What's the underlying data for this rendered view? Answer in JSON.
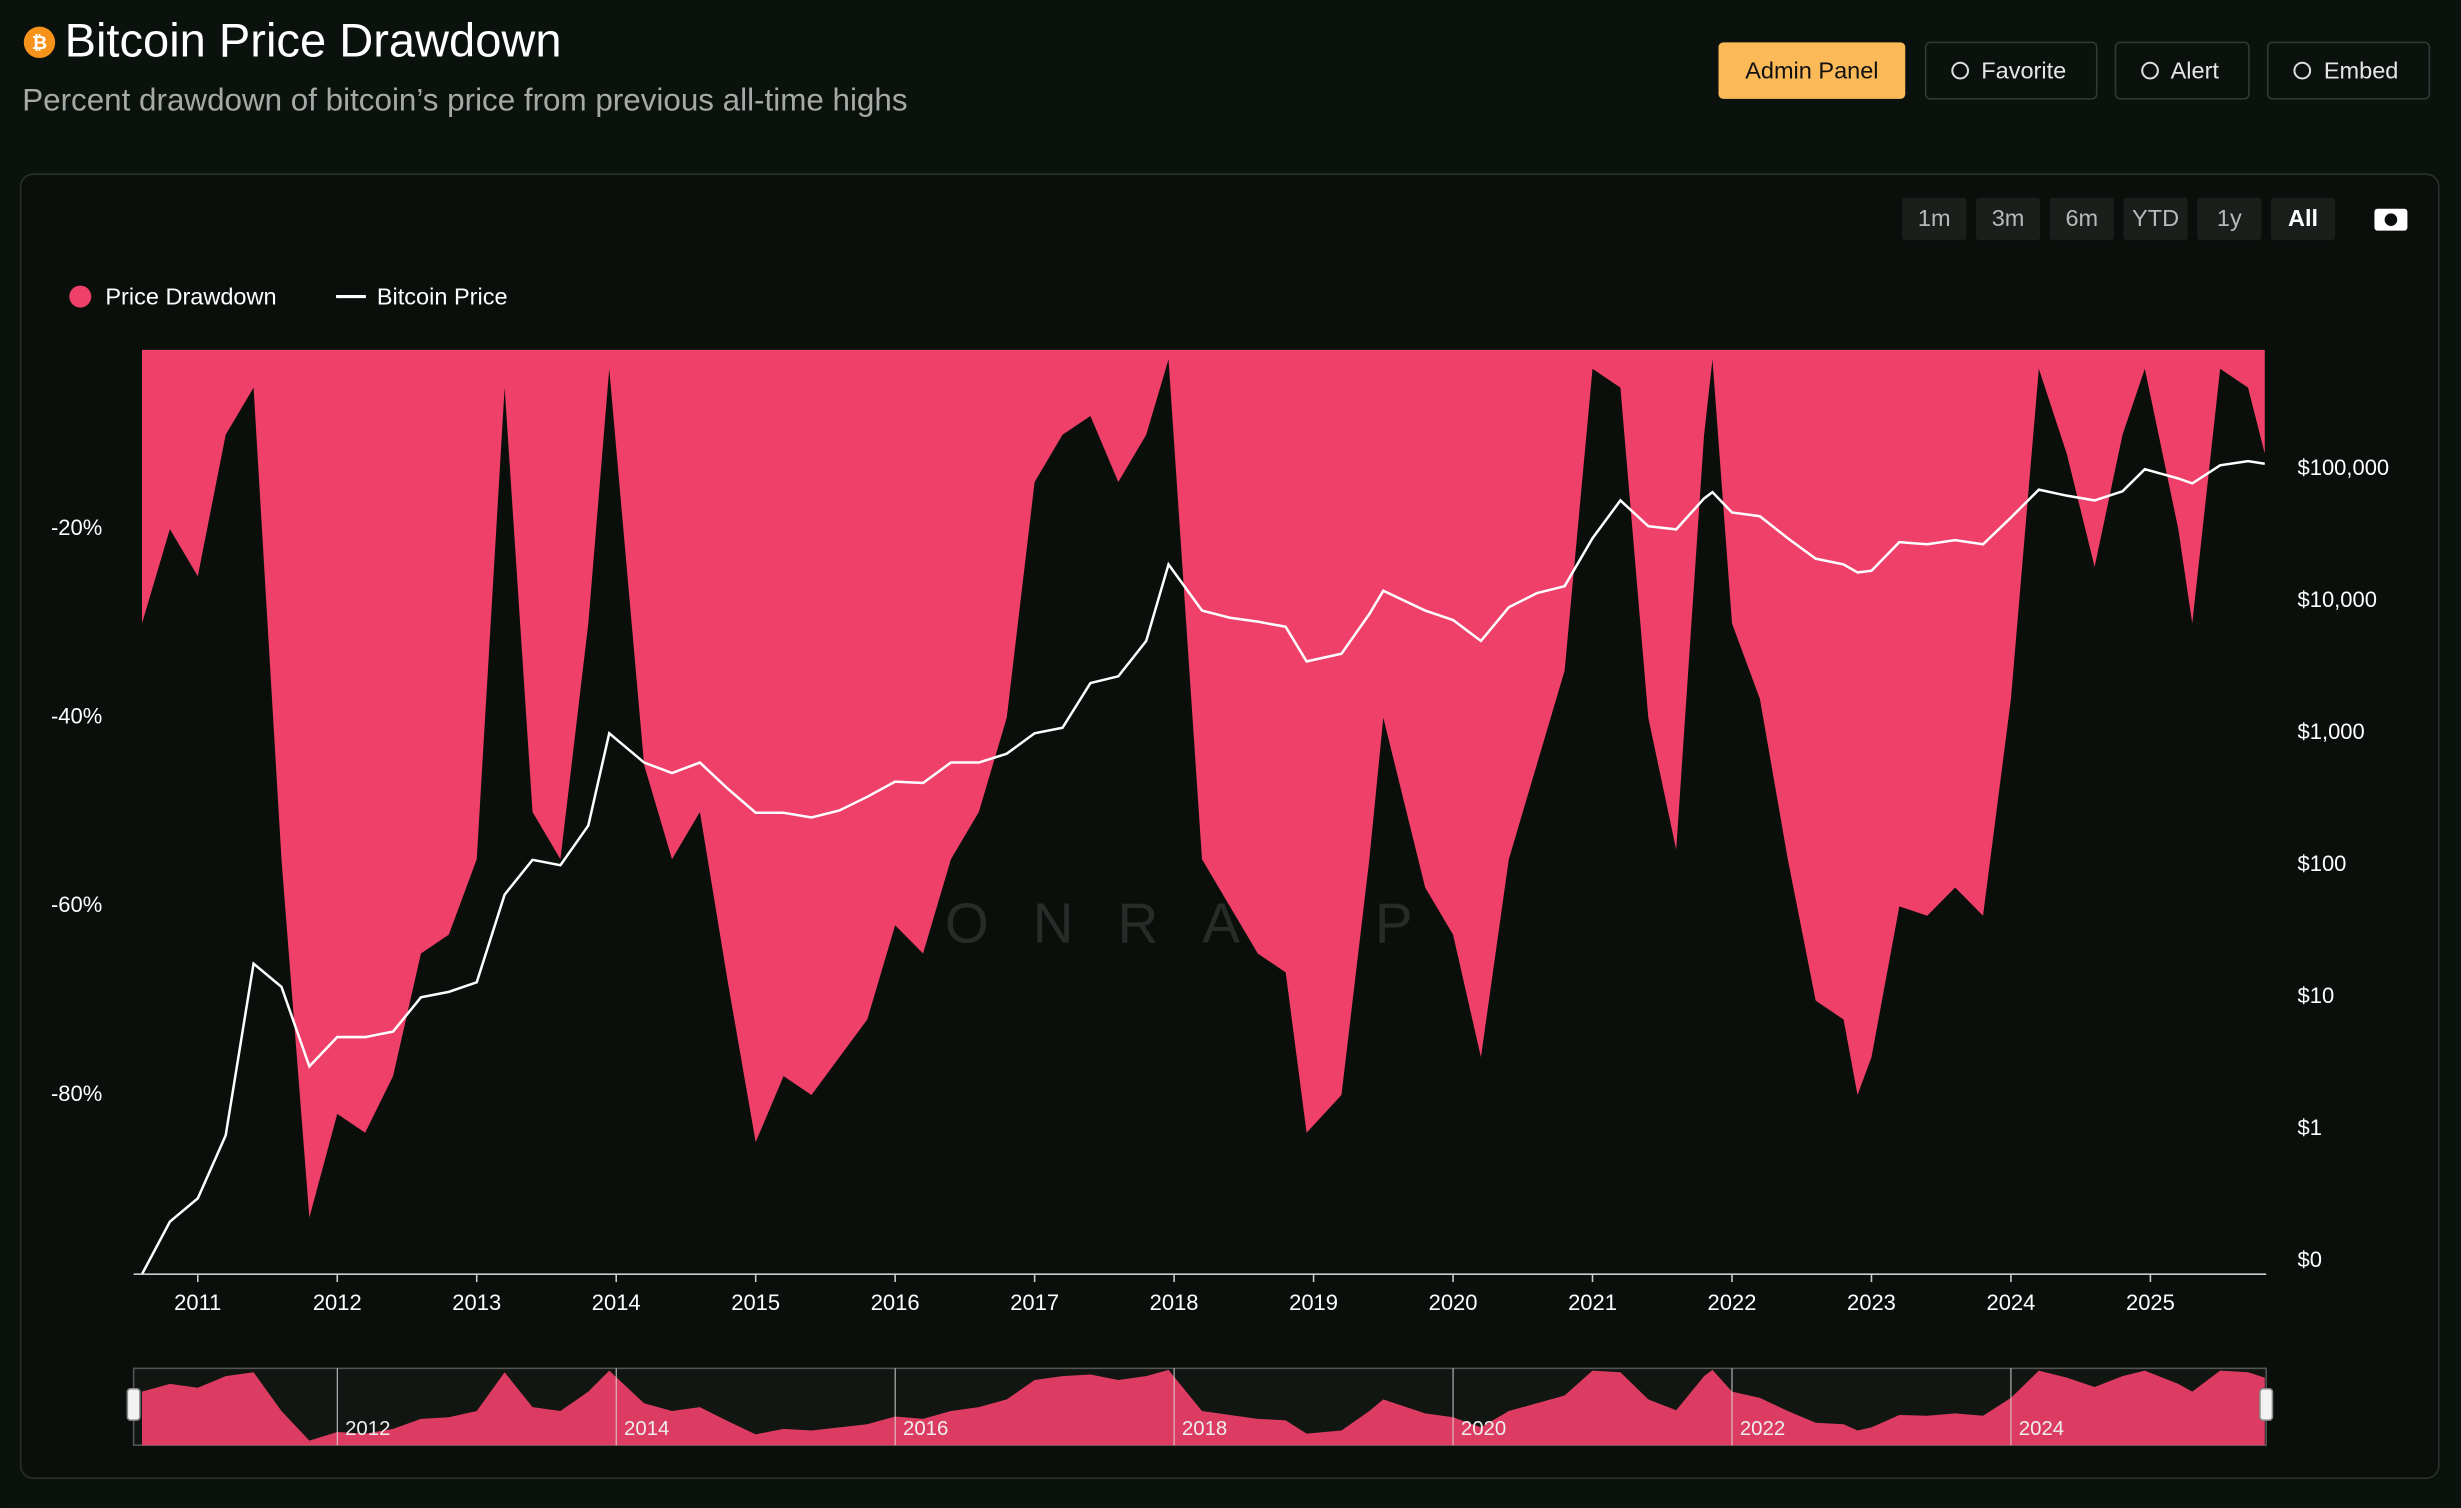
{
  "header": {
    "title": "Bitcoin Price Drawdown",
    "subtitle": "Percent drawdown of bitcoin’s price from previous all-time highs",
    "buttons": [
      "Admin Panel",
      "Favorite",
      "Alert",
      "Embed"
    ]
  },
  "range_buttons": [
    "1m",
    "3m",
    "6m",
    "YTD",
    "1y",
    "All"
  ],
  "watermark": "ONRAMP",
  "chart_data": {
    "type": "area-line",
    "x": [
      2010.6,
      2010.8,
      2011.0,
      2011.2,
      2011.4,
      2011.6,
      2011.8,
      2012.0,
      2012.2,
      2012.4,
      2012.6,
      2012.8,
      2013.0,
      2013.2,
      2013.4,
      2013.6,
      2013.8,
      2013.95,
      2014.2,
      2014.4,
      2014.6,
      2014.8,
      2015.0,
      2015.2,
      2015.4,
      2015.6,
      2015.8,
      2016.0,
      2016.2,
      2016.4,
      2016.6,
      2016.8,
      2017.0,
      2017.2,
      2017.4,
      2017.6,
      2017.8,
      2017.96,
      2018.2,
      2018.4,
      2018.6,
      2018.8,
      2018.95,
      2019.2,
      2019.4,
      2019.5,
      2019.8,
      2020.0,
      2020.2,
      2020.4,
      2020.6,
      2020.8,
      2021.0,
      2021.2,
      2021.4,
      2021.6,
      2021.8,
      2021.86,
      2022.0,
      2022.2,
      2022.4,
      2022.6,
      2022.8,
      2022.9,
      2023.0,
      2023.2,
      2023.4,
      2023.6,
      2023.8,
      2024.0,
      2024.2,
      2024.4,
      2024.6,
      2024.8,
      2024.96,
      2025.2,
      2025.3,
      2025.5,
      2025.7,
      2025.82
    ],
    "series": [
      {
        "name": "Price Drawdown",
        "color": "#ee4068",
        "values": [
          -30,
          -20,
          -25,
          -10,
          -5,
          -55,
          -93,
          -82,
          -84,
          -78,
          -65,
          -63,
          -55,
          -5,
          -50,
          -55,
          -30,
          -3,
          -45,
          -55,
          -50,
          -68,
          -85,
          -78,
          -80,
          -76,
          -72,
          -62,
          -65,
          -55,
          -50,
          -40,
          -15,
          -10,
          -8,
          -15,
          -10,
          -2,
          -55,
          -60,
          -65,
          -67,
          -84,
          -80,
          -55,
          -40,
          -58,
          -63,
          -76,
          -55,
          -45,
          -35,
          -3,
          -5,
          -40,
          -54,
          -10,
          -2,
          -30,
          -38,
          -55,
          -70,
          -72,
          -80,
          -76,
          -60,
          -61,
          -58,
          -61,
          -38,
          -3,
          -12,
          -24,
          -10,
          -3,
          -20,
          -30,
          -3,
          -5,
          -12
        ]
      },
      {
        "name": "Bitcoin Price",
        "color": "#ffffff",
        "axis": "y2",
        "values": [
          0.08,
          0.2,
          0.3,
          0.9,
          18,
          12,
          3,
          5,
          5,
          5.5,
          10,
          11,
          13,
          60,
          110,
          100,
          200,
          1000,
          600,
          500,
          600,
          380,
          250,
          250,
          230,
          260,
          330,
          430,
          420,
          600,
          600,
          700,
          1000,
          1100,
          2400,
          2700,
          5000,
          19000,
          8500,
          7500,
          7000,
          6400,
          3500,
          4000,
          8000,
          12000,
          8500,
          7200,
          5000,
          9000,
          11500,
          13000,
          30000,
          58000,
          37000,
          35000,
          60000,
          67000,
          47000,
          44000,
          30000,
          21000,
          19000,
          16500,
          17000,
          28000,
          27000,
          29000,
          27000,
          43000,
          70000,
          63000,
          58000,
          68000,
          100000,
          85000,
          78000,
          107000,
          115000,
          110000
        ]
      }
    ],
    "xlim": [
      2010.54,
      2025.83
    ],
    "xticks": [
      2011,
      2012,
      2013,
      2014,
      2015,
      2016,
      2017,
      2018,
      2019,
      2020,
      2021,
      2022,
      2023,
      2024,
      2025
    ],
    "ylim": [
      -99,
      -1
    ],
    "yticks": [
      {
        "value": -20,
        "label": "-20%"
      },
      {
        "value": -40,
        "label": "-40%"
      },
      {
        "value": -60,
        "label": "-60%"
      },
      {
        "value": -80,
        "label": "-80%"
      }
    ],
    "y2lim": [
      0.08,
      800000
    ],
    "y2log": true,
    "y2ticks": [
      {
        "value": 0.1,
        "label": "$0"
      },
      {
        "value": 1,
        "label": "$1"
      },
      {
        "value": 10,
        "label": "$10"
      },
      {
        "value": 100,
        "label": "$100"
      },
      {
        "value": 1000,
        "label": "$1,000"
      },
      {
        "value": 10000,
        "label": "$10,000"
      },
      {
        "value": 100000,
        "label": "$100,000"
      }
    ],
    "navigator_ticks": [
      2012,
      2014,
      2016,
      2018,
      2020,
      2022,
      2024
    ]
  }
}
